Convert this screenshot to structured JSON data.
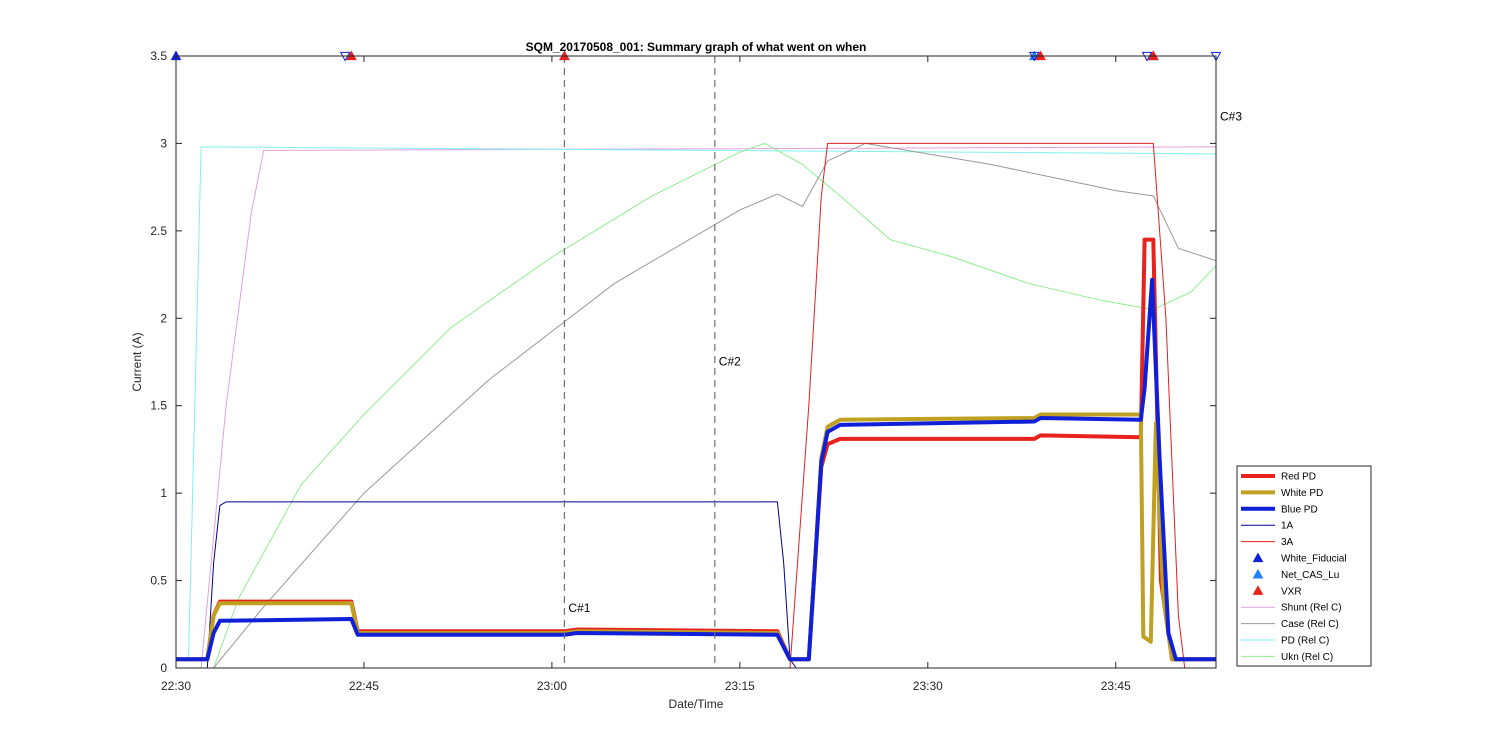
{
  "chart_data": {
    "type": "line",
    "title": "SQM_20170508_001: Summary graph of what went on when",
    "xlabel": "Date/Time",
    "ylabel": "Current (A)",
    "xlim": [
      "22:30",
      "23:53"
    ],
    "ylim": [
      0,
      3.5
    ],
    "x_ticks": [
      "22:30",
      "22:45",
      "23:00",
      "23:15",
      "23:30",
      "23:45"
    ],
    "y_ticks": [
      "0",
      "0.5",
      "1",
      "1.5",
      "2",
      "2.5",
      "3",
      "3.5"
    ],
    "grid": false,
    "legend_position": "bottom-right outside",
    "annotations": [
      {
        "label": "C#1",
        "x": "23:01",
        "y": 0.32
      },
      {
        "label": "C#2",
        "x": "23:13",
        "y": 1.73
      },
      {
        "label": "C#3",
        "x": "23:53",
        "y": 3.13
      }
    ],
    "vertical_lines": [
      "23:01",
      "23:13"
    ],
    "series": [
      {
        "name": "Red PD",
        "color": "#e8221c",
        "width": 4,
        "points": [
          [
            "22:30",
            0.05
          ],
          [
            "22:32.5",
            0.05
          ],
          [
            "22:33",
            0.3
          ],
          [
            "22:33.5",
            0.38
          ],
          [
            "22:44",
            0.38
          ],
          [
            "22:44.5",
            0.21
          ],
          [
            "23:01",
            0.21
          ],
          [
            "23:02",
            0.22
          ],
          [
            "23:18",
            0.21
          ],
          [
            "23:19",
            0.05
          ],
          [
            "23:20.5",
            0.05
          ],
          [
            "23:21",
            0.6
          ],
          [
            "23:21.5",
            1.15
          ],
          [
            "23:22",
            1.28
          ],
          [
            "23:23",
            1.31
          ],
          [
            "23:38.5",
            1.31
          ],
          [
            "23:39",
            1.33
          ],
          [
            "23:47",
            1.32
          ],
          [
            "23:47.3",
            2.45
          ],
          [
            "23:48",
            2.45
          ],
          [
            "23:48.6",
            0.5
          ],
          [
            "23:49.5",
            0.05
          ],
          [
            "23:53",
            0.05
          ]
        ]
      },
      {
        "name": "White PD",
        "color": "#c0a020",
        "width": 4,
        "points": [
          [
            "22:30",
            0.05
          ],
          [
            "22:32.5",
            0.05
          ],
          [
            "22:33",
            0.3
          ],
          [
            "22:33.5",
            0.37
          ],
          [
            "22:44",
            0.37
          ],
          [
            "22:44.5",
            0.2
          ],
          [
            "23:01",
            0.2
          ],
          [
            "23:02",
            0.21
          ],
          [
            "23:18",
            0.2
          ],
          [
            "23:19",
            0.05
          ],
          [
            "23:20.5",
            0.05
          ],
          [
            "23:21",
            0.6
          ],
          [
            "23:21.5",
            1.2
          ],
          [
            "23:22",
            1.38
          ],
          [
            "23:23",
            1.42
          ],
          [
            "23:38.5",
            1.43
          ],
          [
            "23:39",
            1.45
          ],
          [
            "23:47",
            1.45
          ],
          [
            "23:47.2",
            0.18
          ],
          [
            "23:47.8",
            0.15
          ],
          [
            "23:48.2",
            1.4
          ],
          [
            "23:48.8",
            0.4
          ],
          [
            "23:49.5",
            0.05
          ],
          [
            "23:53",
            0.05
          ]
        ]
      },
      {
        "name": "Blue PD",
        "color": "#1020d8",
        "width": 4,
        "points": [
          [
            "22:30",
            0.05
          ],
          [
            "22:32.5",
            0.05
          ],
          [
            "22:33",
            0.2
          ],
          [
            "22:33.5",
            0.27
          ],
          [
            "22:44",
            0.28
          ],
          [
            "22:44.5",
            0.19
          ],
          [
            "23:01",
            0.19
          ],
          [
            "23:02",
            0.2
          ],
          [
            "23:18",
            0.19
          ],
          [
            "23:19",
            0.05
          ],
          [
            "23:20.5",
            0.05
          ],
          [
            "23:21",
            0.6
          ],
          [
            "23:21.5",
            1.18
          ],
          [
            "23:22",
            1.35
          ],
          [
            "23:23",
            1.39
          ],
          [
            "23:38.5",
            1.41
          ],
          [
            "23:39",
            1.43
          ],
          [
            "23:47",
            1.42
          ],
          [
            "23:47.3",
            1.6
          ],
          [
            "23:47.9",
            2.22
          ],
          [
            "23:48.5",
            1.2
          ],
          [
            "23:49.2",
            0.2
          ],
          [
            "23:49.8",
            0.05
          ],
          [
            "23:53",
            0.05
          ]
        ]
      },
      {
        "name": "1A",
        "color": "#00008b",
        "width": 1,
        "points": [
          [
            "22:30",
            0.0
          ],
          [
            "22:32.5",
            0.0
          ],
          [
            "22:33",
            0.6
          ],
          [
            "22:33.5",
            0.93
          ],
          [
            "22:34",
            0.95
          ],
          [
            "23:18",
            0.95
          ],
          [
            "23:18.5",
            0.6
          ],
          [
            "23:19",
            0.05
          ],
          [
            "23:19.5",
            0.0
          ],
          [
            "23:53",
            0.0
          ]
        ]
      },
      {
        "name": "3A",
        "color": "#e02020",
        "width": 1,
        "points": [
          [
            "22:30",
            0.0
          ],
          [
            "23:19",
            0.0
          ],
          [
            "23:20.5",
            1.5
          ],
          [
            "23:21.5",
            2.7
          ],
          [
            "23:22",
            3.0
          ],
          [
            "23:47",
            3.0
          ],
          [
            "23:48",
            3.0
          ],
          [
            "23:49",
            2.0
          ],
          [
            "23:50",
            0.3
          ],
          [
            "23:50.5",
            0.0
          ],
          [
            "23:53",
            0.0
          ]
        ]
      },
      {
        "name": "Shunt (Rel C)",
        "color": "#e0a0e0",
        "width": 1,
        "points": [
          [
            "22:30",
            0.0
          ],
          [
            "22:32",
            0.0
          ],
          [
            "22:34",
            1.5
          ],
          [
            "22:36",
            2.6
          ],
          [
            "22:37",
            2.96
          ],
          [
            "23:53",
            2.98
          ]
        ]
      },
      {
        "name": "Case (Rel C)",
        "color": "#999999",
        "width": 1,
        "points": [
          [
            "22:30",
            0.0
          ],
          [
            "22:33",
            0.0
          ],
          [
            "22:37",
            0.35
          ],
          [
            "22:45",
            1.0
          ],
          [
            "22:55",
            1.65
          ],
          [
            "23:05",
            2.2
          ],
          [
            "23:15",
            2.62
          ],
          [
            "23:18",
            2.71
          ],
          [
            "23:20",
            2.64
          ],
          [
            "23:22",
            2.9
          ],
          [
            "23:25",
            3.0
          ],
          [
            "23:35",
            2.88
          ],
          [
            "23:45",
            2.73
          ],
          [
            "23:48",
            2.7
          ],
          [
            "23:50",
            2.4
          ],
          [
            "23:53",
            2.33
          ]
        ]
      },
      {
        "name": "PD (Rel C)",
        "color": "#80f0f0",
        "width": 1,
        "points": [
          [
            "22:30",
            0.05
          ],
          [
            "22:31",
            0.05
          ],
          [
            "22:31.5",
            1.5
          ],
          [
            "22:32",
            2.98
          ],
          [
            "23:53",
            2.94
          ]
        ]
      },
      {
        "name": "Ukn (Rel C)",
        "color": "#90ee90",
        "width": 1,
        "points": [
          [
            "22:30",
            0.0
          ],
          [
            "22:33",
            0.0
          ],
          [
            "22:35",
            0.4
          ],
          [
            "22:40",
            1.05
          ],
          [
            "22:45",
            1.45
          ],
          [
            "22:52",
            1.95
          ],
          [
            "23:00",
            2.35
          ],
          [
            "23:08",
            2.7
          ],
          [
            "23:15",
            2.95
          ],
          [
            "23:17",
            3.0
          ],
          [
            "23:20",
            2.88
          ],
          [
            "23:23",
            2.7
          ],
          [
            "23:27",
            2.45
          ],
          [
            "23:32",
            2.35
          ],
          [
            "23:38",
            2.2
          ],
          [
            "23:44",
            2.1
          ],
          [
            "23:48",
            2.05
          ],
          [
            "23:51",
            2.15
          ],
          [
            "23:53",
            2.3
          ]
        ]
      }
    ],
    "markers": [
      {
        "name": "White_Fiducial",
        "color": "#1020d8",
        "shape": "triangle-up",
        "x": [
          "22:30",
          "23:48"
        ],
        "y": 3.5
      },
      {
        "name": "Net_CAS_Lu",
        "color": "#2080ff",
        "shape": "triangle-up",
        "x": [
          "23:01",
          "23:38.5"
        ],
        "y": 3.5
      },
      {
        "name": "VXR",
        "color": "#e8221c",
        "shape": "triangle-up",
        "x": [
          "22:44",
          "23:01",
          "23:39",
          "23:48"
        ],
        "y": 3.5
      },
      {
        "name": "",
        "color": "#1020d8",
        "shape": "triangle-down",
        "x": [
          "22:43.5",
          "23:38.5",
          "23:47.5",
          "23:53"
        ],
        "y": 3.5
      }
    ]
  }
}
